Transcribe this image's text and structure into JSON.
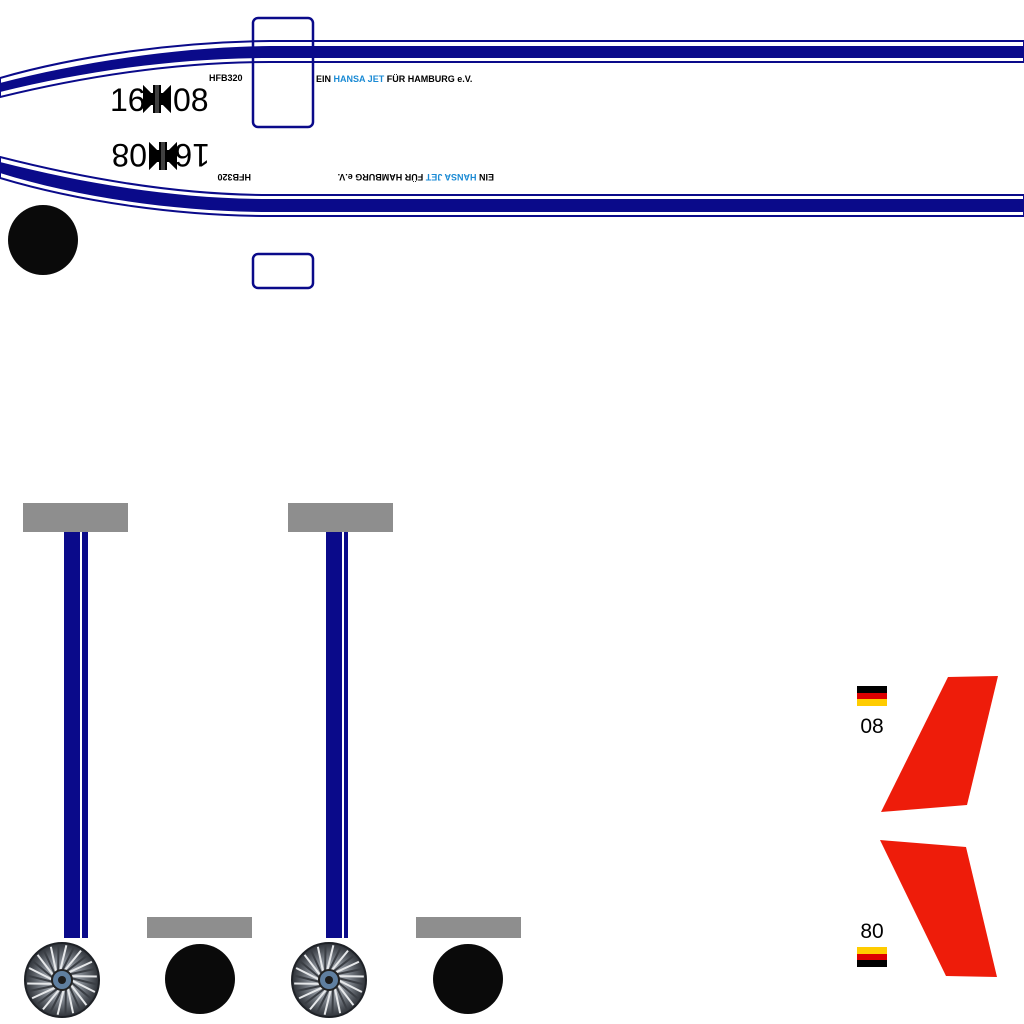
{
  "fuselage_top": {
    "serial_left": "16",
    "serial_right": "08",
    "model": "HFB320",
    "slogan_prefix": "EIN ",
    "slogan_highlight": "HANSA JET",
    "slogan_suffix": " FÜR HAMBURG e.V."
  },
  "fuselage_bottom": {
    "serial_left": "16",
    "serial_right": "08",
    "model": "HFB320",
    "slogan_prefix": "EIN ",
    "slogan_highlight": "HANSA JET",
    "slogan_suffix": " FÜR HAMBURG e.V."
  },
  "fin_upper": {
    "number": "08"
  },
  "fin_lower": {
    "number": "80"
  },
  "colors": {
    "stripe_blue": "#0a0a8a",
    "slogan_highlight": "#1a8ad4",
    "fin_red": "#ee1c0a",
    "strut_top_grey": "#8e8e8e",
    "wheel_black": "#0a0a0a",
    "flag_black": "#000000",
    "flag_red": "#dd0000",
    "flag_gold": "#ffcc00"
  },
  "icons": {
    "cross": "balkenkreuz-icon",
    "wheel": "wheel-hub-icon",
    "flag": "german-flag-icon"
  }
}
